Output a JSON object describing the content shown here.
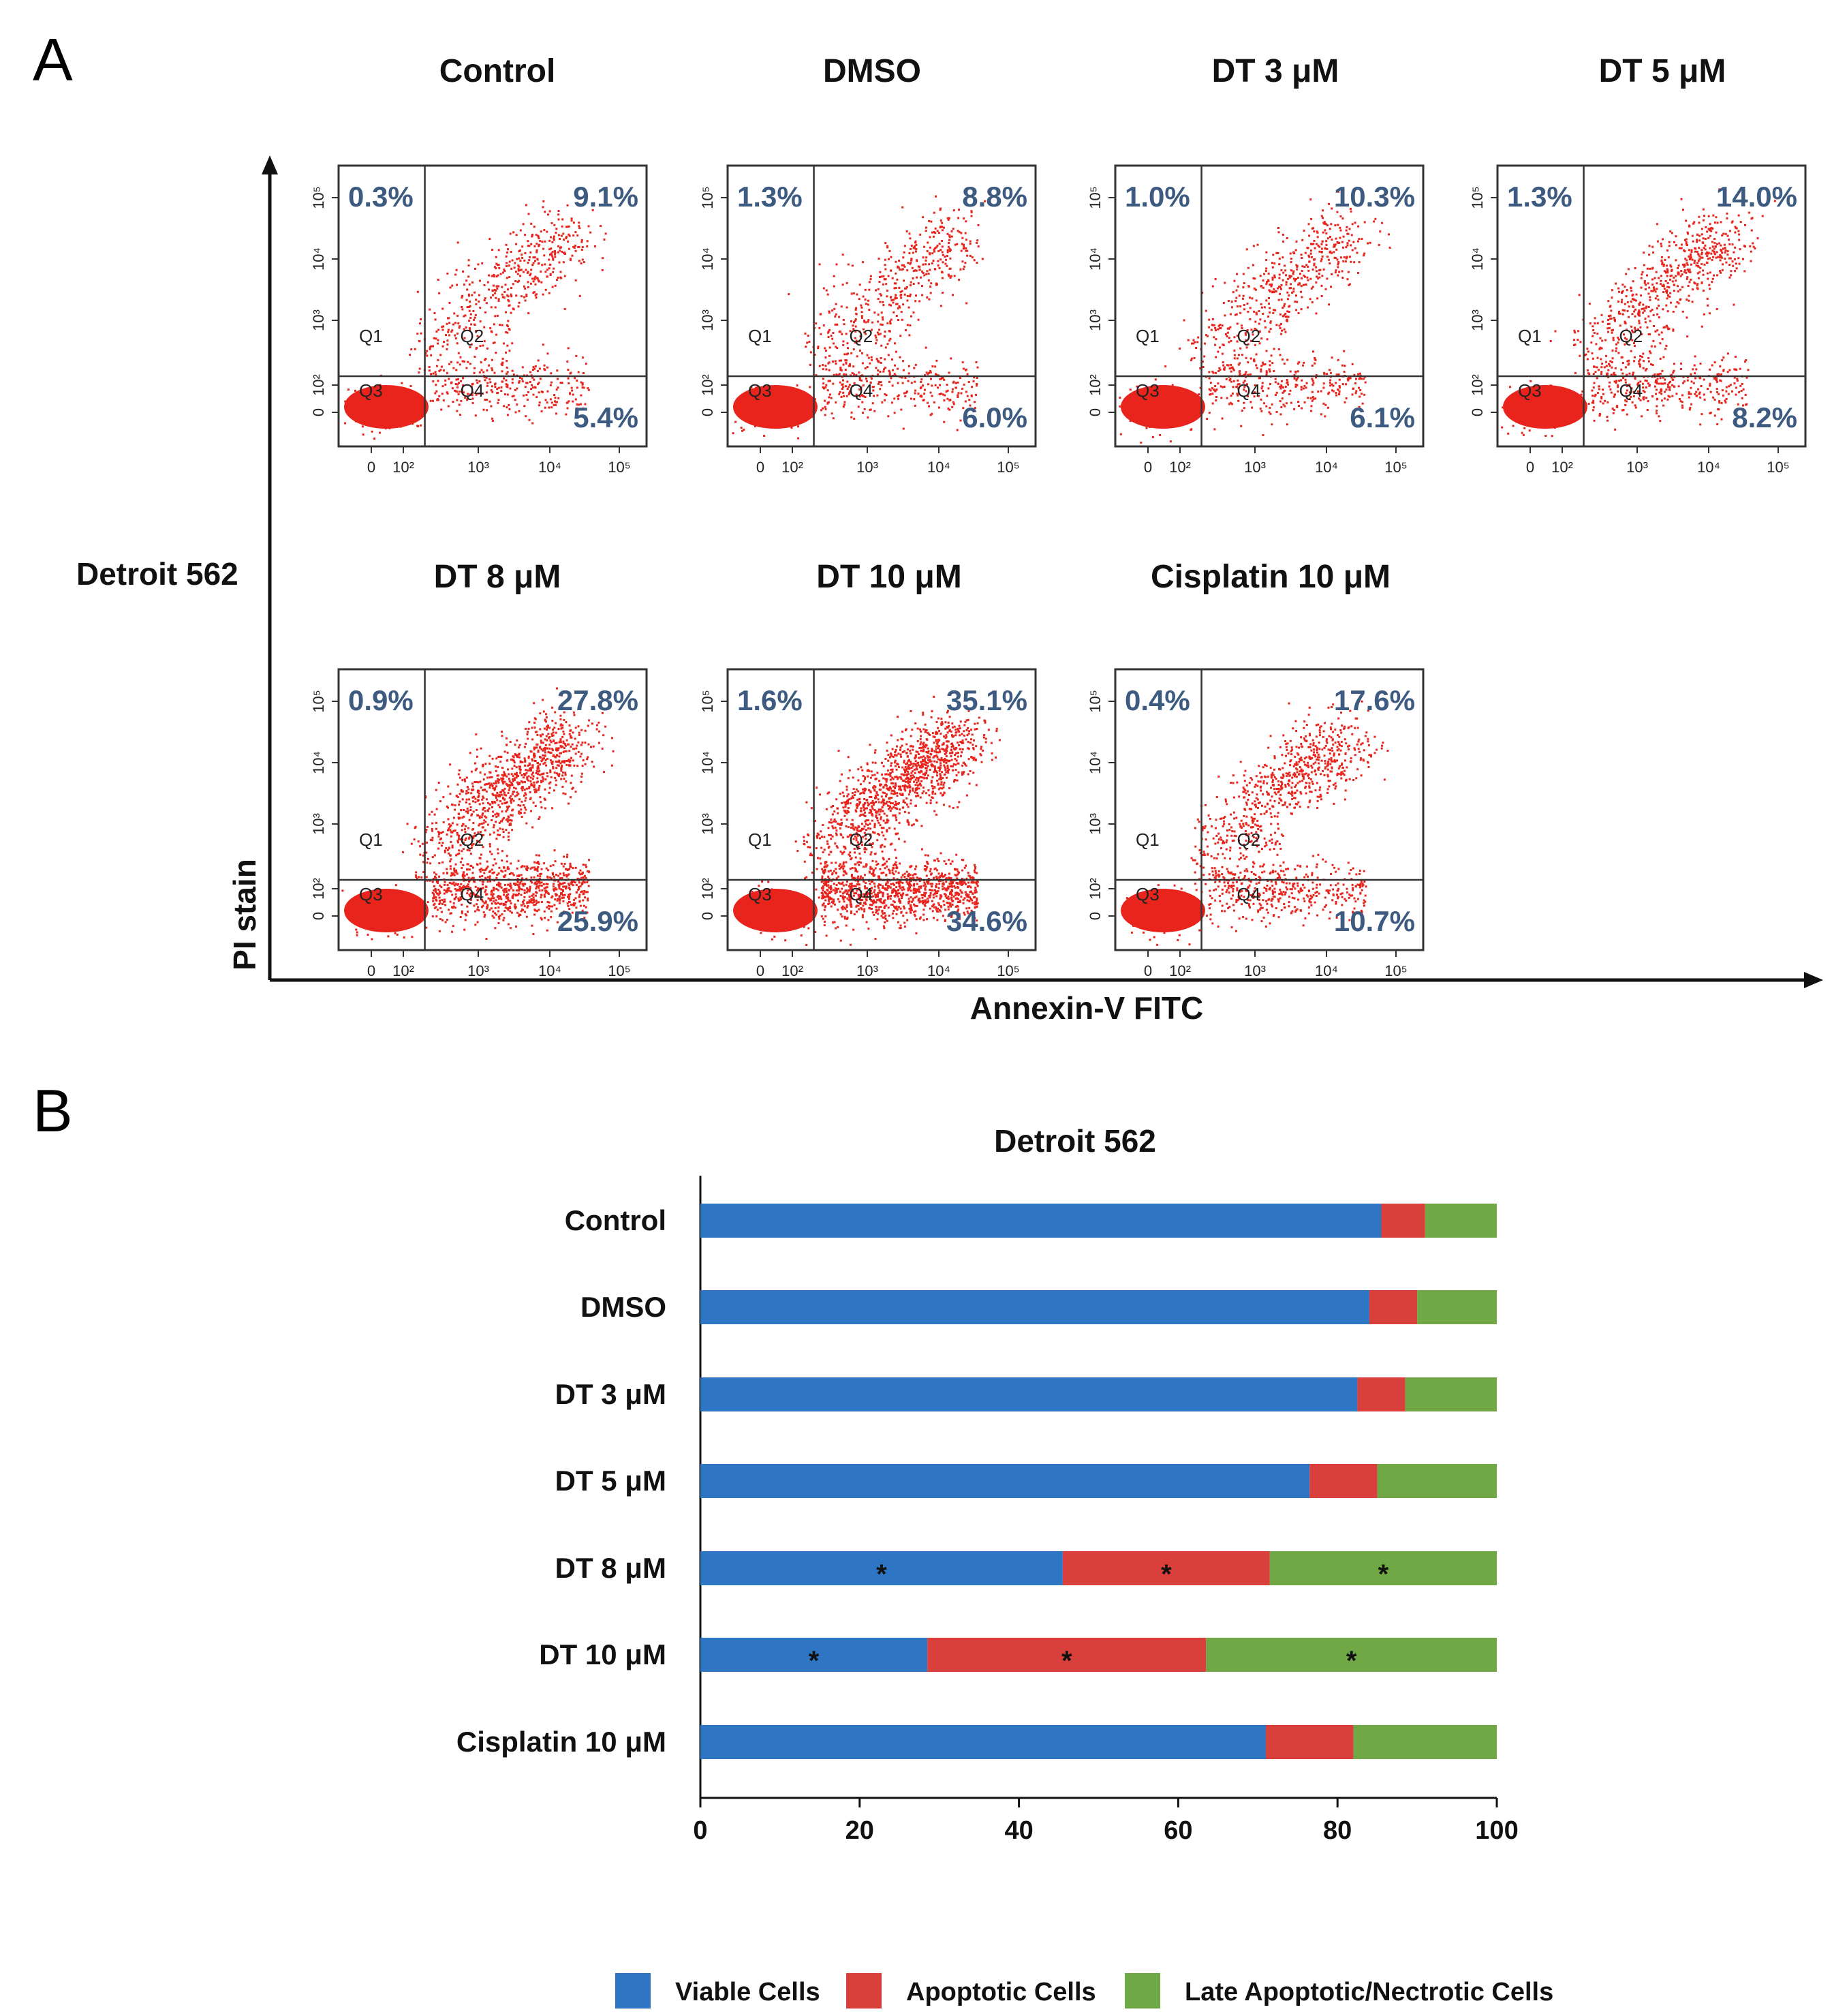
{
  "panel_a": {
    "letter": "A",
    "row_label": "Detroit 562",
    "y_axis_title": "PI stain",
    "x_axis_title": "Annexin-V FITC",
    "quadrant_labels": [
      "Q1",
      "Q2",
      "Q3",
      "Q4"
    ],
    "y_tick_labels": [
      "0",
      "10²",
      "10³",
      "10⁴",
      "10⁵"
    ],
    "x_tick_labels": [
      "0",
      "10²",
      "10³",
      "10⁴",
      "10⁵"
    ],
    "plots": [
      {
        "title": "Control",
        "q1": "0.3%",
        "q2": "9.1%",
        "q4": "5.4%"
      },
      {
        "title": "DMSO",
        "q1": "1.3%",
        "q2": "8.8%",
        "q4": "6.0%"
      },
      {
        "title": "DT 3 μM",
        "q1": "1.0%",
        "q2": "10.3%",
        "q4": "6.1%"
      },
      {
        "title": "DT 5 μM",
        "q1": "1.3%",
        "q2": "14.0%",
        "q4": "8.2%"
      },
      {
        "title": "DT 8 μM",
        "q1": "0.9%",
        "q2": "27.8%",
        "q4": "25.9%"
      },
      {
        "title": "DT 10 μM",
        "q1": "1.6%",
        "q2": "35.1%",
        "q4": "34.6%"
      },
      {
        "title": "Cisplatin 10 μM",
        "q1": "0.4%",
        "q2": "17.6%",
        "q4": "10.7%"
      }
    ]
  },
  "panel_b": {
    "letter": "B"
  },
  "chart_data": {
    "type": "bar",
    "orientation": "horizontal",
    "stacked": true,
    "title": "Detroit 562",
    "categories": [
      "Control",
      "DMSO",
      "DT 3 μM",
      "DT 5 μM",
      "DT 8 μM",
      "DT 10 μM",
      "Cisplatin 10 μM"
    ],
    "series": [
      {
        "name": "Viable Cells",
        "color": "#2e75c3",
        "values": [
          85.5,
          84.0,
          82.5,
          76.5,
          45.5,
          28.5,
          71.0
        ]
      },
      {
        "name": "Apoptotic Cells",
        "color": "#d93f3b",
        "values": [
          5.5,
          6.0,
          6.0,
          8.5,
          26.0,
          35.0,
          11.0
        ]
      },
      {
        "name": "Late Apoptotic/Nectrotic Cells",
        "color": "#70a845",
        "values": [
          9.0,
          10.0,
          11.5,
          15.0,
          28.5,
          36.5,
          18.0
        ]
      }
    ],
    "significance_marker": "*",
    "significant_rows": [
      "DT 8 μM",
      "DT 10 μM"
    ],
    "xlim": [
      0,
      100
    ],
    "x_ticks": [
      0,
      20,
      40,
      60,
      80,
      100
    ],
    "xlabel": "",
    "ylabel": "",
    "legend_position": "bottom"
  }
}
